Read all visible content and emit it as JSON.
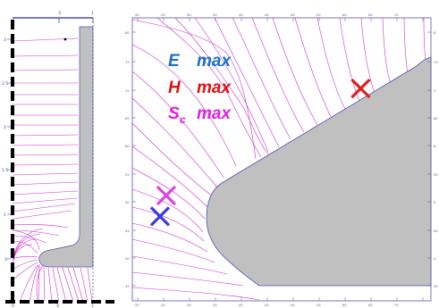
{
  "colors": {
    "field_line": "#cc33cc",
    "axis": "#5555aa",
    "grid": "#aaaaee",
    "metal": "#c0c0c0",
    "metal_edge": "#5050b0",
    "e_marker": "#3a3ae0",
    "h_marker": "#e01e1e",
    "s_marker": "#e040e0",
    "e_label": "#1a6fc8",
    "h_label": "#e01010",
    "s_label": "#e020e0"
  },
  "left_panel": {
    "top_ticks": [
      ".5",
      "1"
    ],
    "left_ticks": [
      "3",
      "2.5",
      "2",
      "1.5",
      "1",
      ".5"
    ],
    "bottom_ticks": [
      "0",
      ".5",
      "1"
    ]
  },
  "right_panel": {
    "top_ticks": [
      ".20",
      ".25",
      ".30",
      ".35",
      ".40",
      ".45",
      ".50",
      ".55",
      ".60",
      ".65",
      ".70"
    ],
    "bottom_ticks": [
      ".20",
      ".25",
      ".30",
      ".35",
      ".40",
      ".45",
      ".50",
      ".55",
      ".60",
      ".65",
      ".70"
    ],
    "left_ticks": [
      ".80",
      ".75",
      ".70",
      ".65",
      ".60",
      ".55",
      ".50",
      ".45",
      ".40",
      ".35"
    ],
    "right_ticks": [
      ".8",
      ".75",
      ".7",
      ".65",
      ".6",
      ".55",
      ".5",
      ".45",
      ".4",
      ".35"
    ]
  },
  "legend": {
    "e_symbol": "E",
    "e_text": "max",
    "h_symbol": "H",
    "h_text": "max",
    "s_symbol": "S",
    "s_sub": "c",
    "s_text": "max"
  },
  "markers": [
    {
      "name": "h-max",
      "label": "H max",
      "x": 0.63,
      "y": 0.7
    },
    {
      "name": "s-max",
      "label": "Sc max",
      "x": 0.255,
      "y": 0.51
    },
    {
      "name": "e-max",
      "label": "E max",
      "x": 0.243,
      "y": 0.473
    }
  ]
}
